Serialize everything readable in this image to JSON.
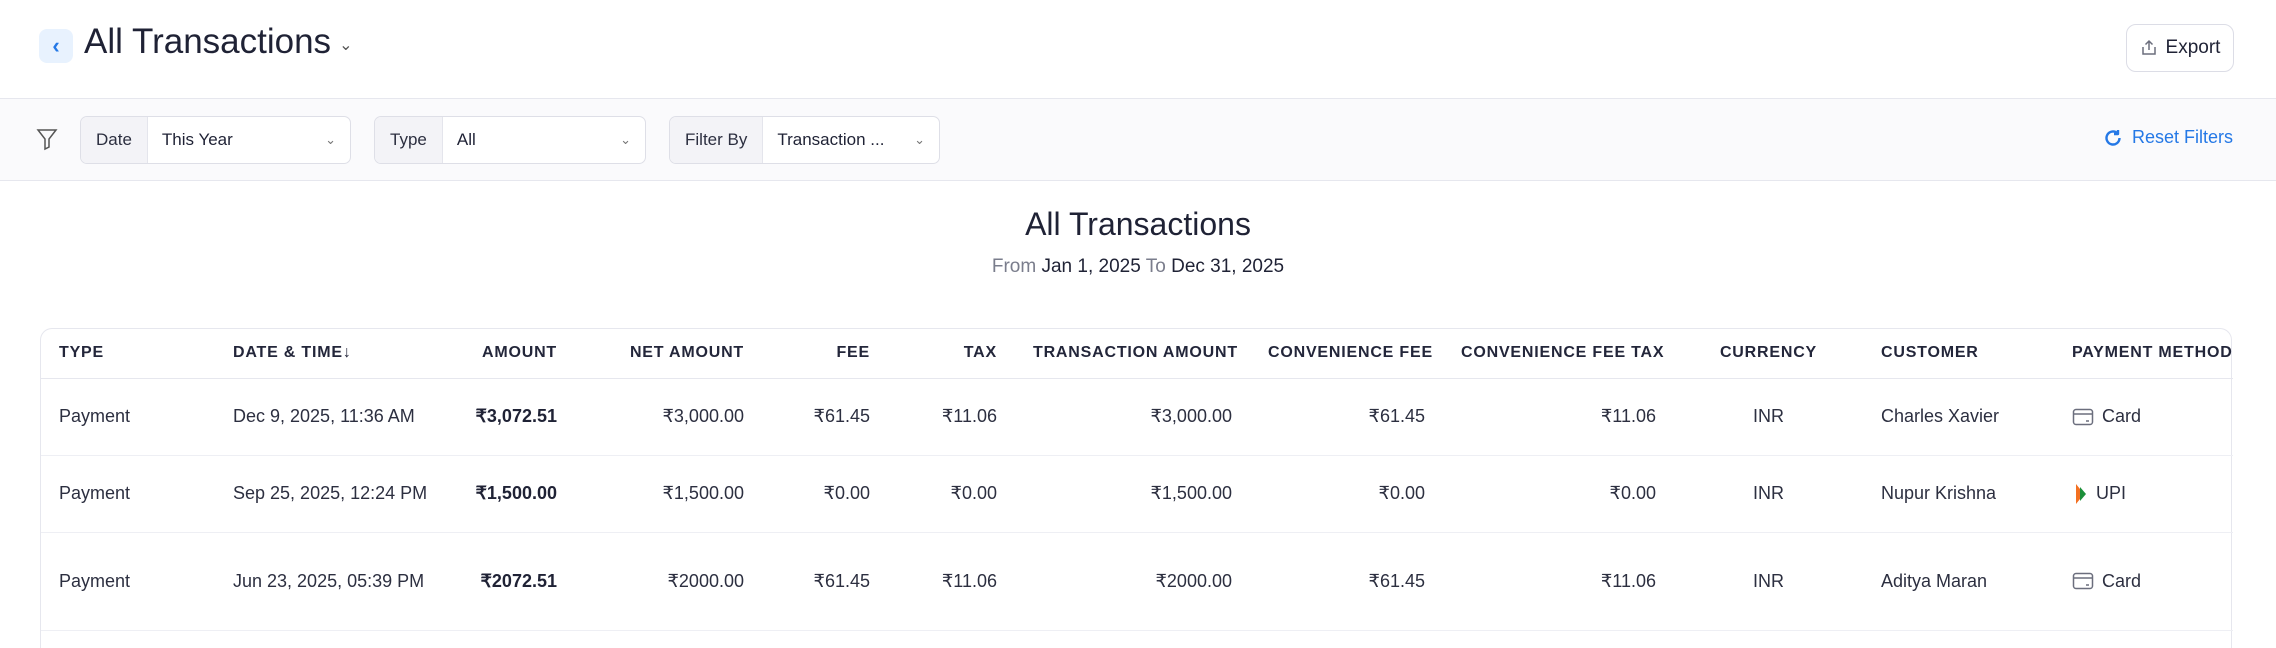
{
  "header": {
    "title": "All Transactions",
    "export_label": "Export"
  },
  "filters": {
    "date": {
      "label": "Date",
      "value": "This Year"
    },
    "type": {
      "label": "Type",
      "value": "All"
    },
    "filter_by": {
      "label": "Filter By",
      "value": "Transaction ..."
    },
    "reset_label": "Reset Filters"
  },
  "report": {
    "title": "All Transactions",
    "from_label": "From",
    "from": "Jan 1, 2025",
    "to_label": "To",
    "to": "Dec 31, 2025"
  },
  "colors": {
    "accent": "#2478e6",
    "text": "#1f2235"
  },
  "table": {
    "columns": [
      "TYPE",
      "DATE & TIME↓",
      "AMOUNT",
      "NET AMOUNT",
      "FEE",
      "TAX",
      "TRANSACTION AMOUNT",
      "CONVENIENCE FEE",
      "CONVENIENCE FEE TAX",
      "CURRENCY",
      "CUSTOMER",
      "PAYMENT METHOD"
    ],
    "rows": [
      {
        "type": "Payment",
        "datetime": "Dec 9, 2025, 11:36 AM",
        "amount": "₹3,072.51",
        "net": "₹3,000.00",
        "fee": "₹61.45",
        "tax": "₹11.06",
        "txn": "₹3,000.00",
        "cfee": "₹61.45",
        "cfeetax": "₹11.06",
        "currency": "INR",
        "customer": "Charles Xavier",
        "method": "Card",
        "method_icon": "card-icon"
      },
      {
        "type": "Payment",
        "datetime": "Sep 25, 2025, 12:24 PM",
        "amount": "₹1,500.00",
        "net": "₹1,500.00",
        "fee": "₹0.00",
        "tax": "₹0.00",
        "txn": "₹1,500.00",
        "cfee": "₹0.00",
        "cfeetax": "₹0.00",
        "currency": "INR",
        "customer": "Nupur Krishna",
        "method": "UPI",
        "method_icon": "upi-icon"
      },
      {
        "type": "Payment",
        "datetime": "Jun 23, 2025, 05:39 PM",
        "amount": "₹2072.51",
        "net": "₹2000.00",
        "fee": "₹61.45",
        "tax": "₹11.06",
        "txn": "₹2000.00",
        "cfee": "₹61.45",
        "cfeetax": "₹11.06",
        "currency": "INR",
        "customer": "Aditya Maran",
        "method": "Card",
        "method_icon": "card-icon"
      }
    ]
  }
}
